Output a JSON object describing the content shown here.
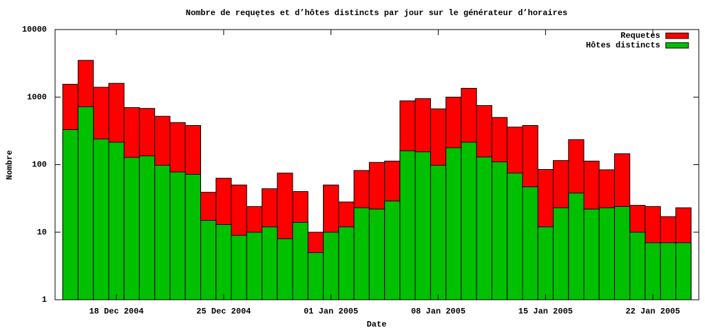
{
  "chart_data": {
    "type": "bar",
    "log_scale_y": true,
    "title": "Nombre de requętes et d’hôtes distincts par jour sur le générateur d’horaires",
    "x_label": "Date",
    "y_label": "Nombre",
    "x": [
      "2004-12-15",
      "2004-12-16",
      "2004-12-17",
      "2004-12-18",
      "2004-12-19",
      "2004-12-20",
      "2004-12-21",
      "2004-12-22",
      "2004-12-23",
      "2004-12-24",
      "2004-12-25",
      "2004-12-26",
      "2004-12-27",
      "2004-12-28",
      "2004-12-29",
      "2004-12-30",
      "2004-12-31",
      "2005-01-01",
      "2005-01-02",
      "2005-01-03",
      "2005-01-04",
      "2005-01-05",
      "2005-01-06",
      "2005-01-07",
      "2005-01-08",
      "2005-01-09",
      "2005-01-10",
      "2005-01-11",
      "2005-01-12",
      "2005-01-13",
      "2005-01-14",
      "2005-01-15",
      "2005-01-16",
      "2005-01-17",
      "2005-01-18",
      "2005-01-19",
      "2005-01-20",
      "2005-01-21",
      "2005-01-22",
      "2005-01-23",
      "2005-01-24"
    ],
    "series": [
      {
        "name": "Requetes",
        "color": "#ff0000",
        "values": [
          1550,
          3500,
          1400,
          1600,
          700,
          680,
          520,
          420,
          380,
          39,
          63,
          50,
          24,
          44,
          75,
          40,
          10,
          50,
          28,
          82,
          108,
          113,
          880,
          950,
          670,
          1000,
          1350,
          750,
          500,
          360,
          380,
          85,
          115,
          235,
          113,
          84,
          145,
          25,
          24,
          17,
          23
        ]
      },
      {
        "name": "Hôtes distincts",
        "color": "#00c000",
        "values": [
          330,
          720,
          240,
          215,
          128,
          135,
          98,
          78,
          72,
          15,
          13,
          9,
          10,
          12,
          8,
          14,
          5,
          10,
          12,
          23,
          22,
          29,
          160,
          155,
          98,
          178,
          215,
          130,
          110,
          75,
          47,
          12,
          23,
          38,
          22,
          23,
          24,
          10,
          7,
          7,
          7
        ]
      }
    ],
    "xlim": [
      "2004-12-14",
      "2005-01-25"
    ],
    "xticks": [
      {
        "value": "2004-12-18",
        "label": "18 Dec 2004"
      },
      {
        "value": "2004-12-25",
        "label": "25 Dec 2004"
      },
      {
        "value": "2005-01-01",
        "label": "01 Jan 2005"
      },
      {
        "value": "2005-01-08",
        "label": "08 Jan 2005"
      },
      {
        "value": "2005-01-15",
        "label": "15 Jan 2005"
      },
      {
        "value": "2005-01-22",
        "label": "22 Jan 2005"
      }
    ],
    "ylim": [
      1,
      10000
    ],
    "yticks": [
      1,
      10,
      100,
      1000,
      10000
    ],
    "legend": "top-right"
  }
}
